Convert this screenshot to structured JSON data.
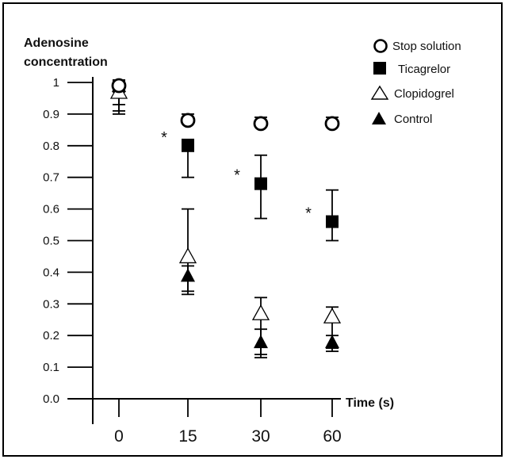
{
  "chart_data": {
    "type": "scatter",
    "title": "",
    "ylabel_lines": [
      "Adenosine",
      "concentration"
    ],
    "xlabel": "Time (s)",
    "categories": [
      "0",
      "15",
      "30",
      "60"
    ],
    "y_ticks": [
      "0.0",
      "0.1",
      "0.2",
      "0.3",
      "0.4",
      "0.5",
      "0.6",
      "0.7",
      "0.8",
      "0.9",
      "1"
    ],
    "ylim": [
      0,
      1
    ],
    "grid": false,
    "legend_position": "top-right",
    "series": [
      {
        "name": "Stop solution",
        "marker": "circle-open",
        "values": [
          0.99,
          0.88,
          0.87,
          0.87
        ],
        "err_low": [
          0.97,
          0.87,
          0.86,
          0.86
        ],
        "err_high": [
          1.0,
          0.9,
          0.89,
          0.89
        ]
      },
      {
        "name": "Ticagrelor",
        "marker": "square-filled",
        "values": [
          0.99,
          0.8,
          0.68,
          0.56
        ],
        "err_low": [
          0.93,
          0.7,
          0.57,
          0.5
        ],
        "err_high": [
          1.0,
          0.82,
          0.77,
          0.66
        ]
      },
      {
        "name": "Clopidogrel",
        "marker": "triangle-open",
        "values": [
          0.97,
          0.45,
          0.27,
          0.26
        ],
        "err_low": [
          0.91,
          0.33,
          0.14,
          0.16
        ],
        "err_high": [
          1.0,
          0.6,
          0.32,
          0.29
        ]
      },
      {
        "name": "Control",
        "marker": "triangle-filled",
        "values": [
          0.99,
          0.39,
          0.18,
          0.18
        ],
        "err_low": [
          0.9,
          0.34,
          0.13,
          0.15
        ],
        "err_high": [
          1.0,
          0.42,
          0.22,
          0.2
        ]
      }
    ],
    "significance_markers": [
      {
        "category": "15",
        "label": "*"
      },
      {
        "category": "30",
        "label": "*"
      },
      {
        "category": "60",
        "label": "*"
      }
    ]
  }
}
